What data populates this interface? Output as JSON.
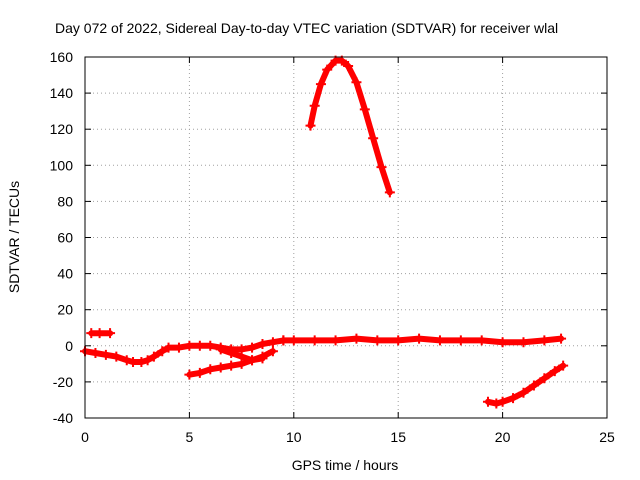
{
  "chart_data": {
    "type": "line",
    "title": "Day 072 of 2022, Sidereal Day-to-day VTEC variation (SDTVAR) for receiver wlal",
    "xlabel": "GPS time / hours",
    "ylabel": "SDTVAR / TECUs",
    "xlim": [
      0,
      25
    ],
    "ylim": [
      -40,
      160
    ],
    "xticks": [
      0,
      5,
      10,
      15,
      20,
      25
    ],
    "yticks": [
      -40,
      -20,
      0,
      20,
      40,
      60,
      80,
      100,
      120,
      140,
      160
    ],
    "grid": true,
    "series_color": "#ff0000",
    "series": [
      {
        "name": "arc-main-a",
        "x": [
          0,
          0.5,
          1,
          1.5,
          2,
          2.3,
          2.7,
          3,
          3.3,
          3.7,
          4,
          4.5,
          5,
          5.5,
          6,
          6.5,
          7,
          7.5,
          8,
          8.5,
          9,
          9.5
        ],
        "y": [
          -3,
          -4,
          -5,
          -6,
          -8,
          -9,
          -9,
          -8,
          -6,
          -3,
          -1,
          -1,
          0,
          0,
          0,
          -1,
          -2,
          -2,
          -1,
          1,
          2,
          3
        ]
      },
      {
        "name": "arc-offset",
        "x": [
          0.3,
          0.7,
          1.2
        ],
        "y": [
          7,
          7,
          7
        ]
      },
      {
        "name": "arc-main-b",
        "x": [
          9.5,
          10,
          11,
          12,
          13,
          14,
          15,
          16,
          17,
          18,
          19,
          20,
          21,
          22,
          22.8
        ],
        "y": [
          3,
          3,
          3,
          3,
          4,
          3,
          3,
          4,
          3,
          3,
          3,
          2,
          2,
          3,
          4
        ]
      },
      {
        "name": "arc-dip-rise",
        "x": [
          5,
          5.5,
          6,
          6.5,
          7,
          7.5,
          8,
          8.5,
          9
        ],
        "y": [
          -16,
          -15,
          -13,
          -12,
          -11,
          -10,
          -8,
          -6,
          -3
        ]
      },
      {
        "name": "arc-cross",
        "x": [
          6.5,
          7,
          7.5,
          8,
          8.5
        ],
        "y": [
          -2,
          -4,
          -6,
          -8,
          -7
        ]
      },
      {
        "name": "arc-peak",
        "x": [
          10.8,
          11,
          11.3,
          11.6,
          12,
          12.3,
          12.6,
          13,
          13.4,
          13.8,
          14.2,
          14.6
        ],
        "y": [
          122,
          133,
          145,
          153,
          158,
          158,
          155,
          146,
          131,
          115,
          99,
          85
        ]
      },
      {
        "name": "arc-late",
        "x": [
          19.3,
          19.7,
          20,
          20.5,
          21,
          21.5,
          22,
          22.5,
          22.9
        ],
        "y": [
          -31,
          -32,
          -31,
          -29,
          -26,
          -22,
          -18,
          -14,
          -11
        ]
      }
    ]
  }
}
